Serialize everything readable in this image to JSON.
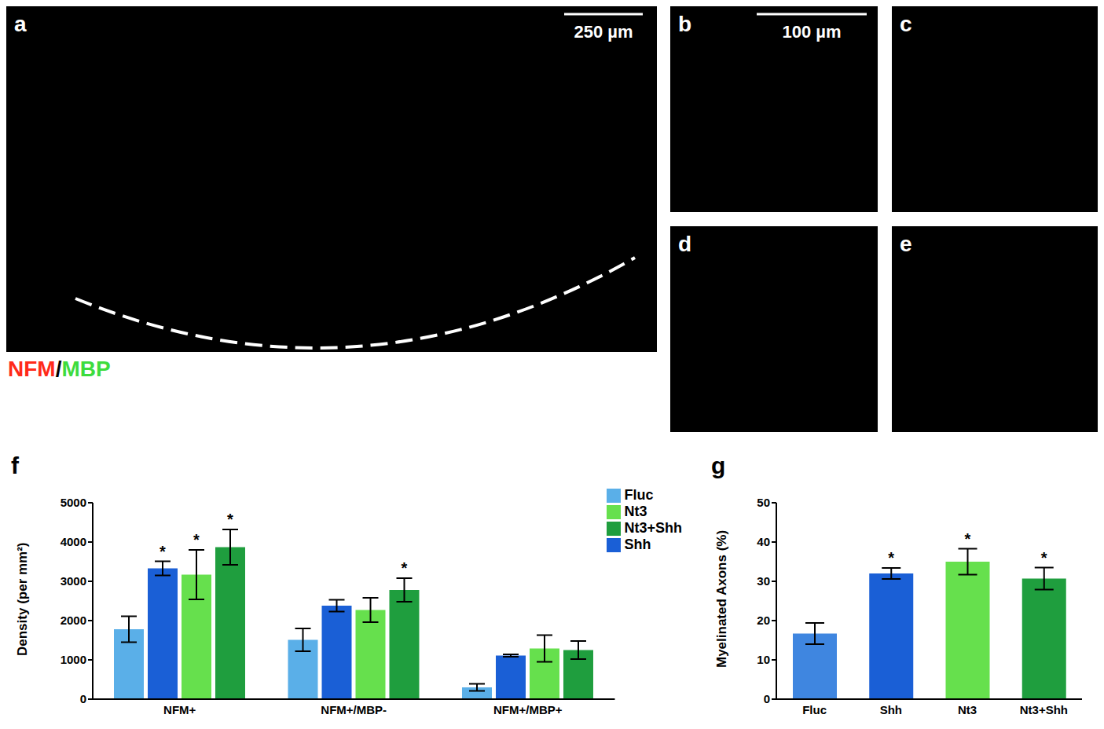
{
  "image_panels": [
    {
      "label": "a",
      "scale_bar": "250 µm"
    },
    {
      "label": "b",
      "scale_bar": "100 µm"
    },
    {
      "label": "c"
    },
    {
      "label": "d"
    },
    {
      "label": "e"
    }
  ],
  "stain_label": [
    {
      "text": "NFM",
      "color": "#ff2a1a"
    },
    {
      "text": "/",
      "color": "#000000"
    },
    {
      "text": "MBP",
      "color": "#3ddc3d"
    }
  ],
  "chart_data": [
    {
      "panel": "f",
      "type": "bar",
      "ylabel": "Density (per mm²)",
      "categories": [
        "NFM+",
        "NFM+/MBP-",
        "NFM+/MBP+"
      ],
      "series": [
        {
          "name": "Fluc",
          "color": "#5aafe8",
          "values": [
            1780,
            1510,
            300
          ],
          "errors": [
            330,
            290,
            90
          ],
          "significance": [
            null,
            null,
            null
          ]
        },
        {
          "name": "Shh",
          "color": "#1a5fd6",
          "values": [
            3330,
            2380,
            1110
          ],
          "errors": [
            180,
            150,
            30
          ],
          "significance": [
            "*",
            null,
            null
          ]
        },
        {
          "name": "Nt3",
          "color": "#66e04d",
          "values": [
            3170,
            2270,
            1290
          ],
          "errors": [
            630,
            310,
            340
          ],
          "significance": [
            "*",
            null,
            null
          ]
        },
        {
          "name": "Nt3+Shh",
          "color": "#1f9e3e",
          "values": [
            3870,
            2780,
            1250
          ],
          "errors": [
            450,
            300,
            230
          ],
          "significance": [
            "*",
            "*",
            null
          ]
        }
      ],
      "ylim": [
        0,
        5000
      ],
      "yticks": [
        0,
        1000,
        2000,
        3000,
        4000,
        5000
      ],
      "legend": "top-right",
      "grid": false
    },
    {
      "panel": "g",
      "type": "bar",
      "ylabel": "Myelinated Axons (%)",
      "categories": [
        "Fluc",
        "Shh",
        "Nt3",
        "Nt3+Shh"
      ],
      "values": [
        16.7,
        32,
        35,
        30.7
      ],
      "errors": [
        2.7,
        1.4,
        3.3,
        2.8
      ],
      "significance": [
        null,
        "*",
        "*",
        "*"
      ],
      "colors": [
        "#3f86e0",
        "#1a5fd6",
        "#66e04d",
        "#1f9e3e"
      ],
      "ylim": [
        0,
        50
      ],
      "yticks": [
        0,
        10,
        20,
        30,
        40,
        50
      ],
      "grid": false
    }
  ]
}
